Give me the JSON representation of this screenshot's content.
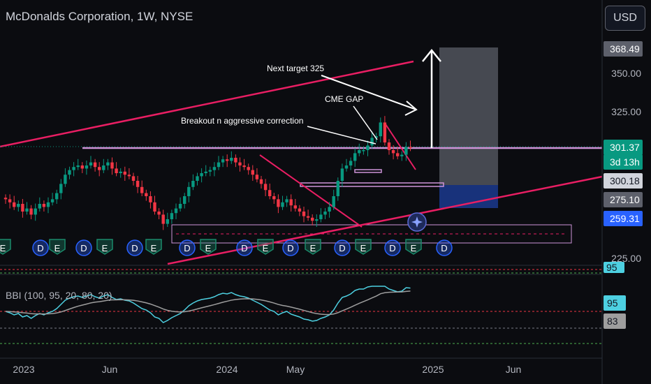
{
  "header": {
    "symbol_title": "McDonalds Corporation, 1W, NYSE",
    "currency_button": "USD"
  },
  "colors": {
    "up": "#089981",
    "down": "#f23645",
    "trendline": "#e91e63",
    "level": "#ce93d8",
    "earnings_green": "#1b8a6b",
    "earnings_red": "#b33a4a",
    "earnings_blue": "#2962ff"
  },
  "annotations": {
    "next_target": "Next target 325",
    "cme_gap": "CME GAP",
    "breakout": "Breakout n aggressive correction"
  },
  "price_axis": {
    "ticks": [
      "350.00",
      "325.00",
      "225.00"
    ],
    "badges": [
      {
        "text": "368.49",
        "bg": "#5d606b",
        "fg": "#ffffff"
      },
      {
        "text": "301.37",
        "bg": "#089981",
        "fg": "#ffffff"
      },
      {
        "text": "3d 13h",
        "bg": "#089981",
        "fg": "#ffffff"
      },
      {
        "text": "300.18",
        "bg": "#d1d4dc",
        "fg": "#131722"
      },
      {
        "text": "275.10",
        "bg": "#5d606b",
        "fg": "#ffffff"
      },
      {
        "text": "259.31",
        "bg": "#2962ff",
        "fg": "#ffffff"
      }
    ]
  },
  "earnings_markers": [
    "E",
    "D",
    "E",
    "D",
    "E",
    "D",
    "E",
    "D",
    "E",
    "D",
    "E",
    "D",
    "E",
    "D",
    "E",
    "D",
    "E",
    "D",
    "E",
    "D",
    "E"
  ],
  "indicator": {
    "label": "BBI (100, 95, 20, 80, 20)",
    "badges": [
      "95",
      "83"
    ],
    "upper_badge": "95"
  },
  "time_axis": {
    "labels": [
      "2023",
      "Jun",
      "2024",
      "May",
      "2025",
      "Jun"
    ]
  },
  "chart_data": {
    "type": "candlestick",
    "title": "McDonalds Corporation, 1W, NYSE",
    "xlabel": "",
    "ylabel": "",
    "ylim": [
      225,
      368.49
    ],
    "close": [
      268,
      266,
      263,
      265,
      260,
      262,
      258,
      262,
      265,
      263,
      266,
      268,
      272,
      278,
      284,
      287,
      289,
      290,
      288,
      290,
      292,
      289,
      287,
      290,
      292,
      288,
      285,
      286,
      284,
      283,
      280,
      276,
      272,
      270,
      266,
      260,
      258,
      252,
      255,
      259,
      262,
      265,
      270,
      276,
      280,
      283,
      285,
      286,
      287,
      289,
      292,
      294,
      293,
      295,
      292,
      290,
      289,
      287,
      284,
      281,
      278,
      274,
      270,
      268,
      263,
      266,
      268,
      264,
      262,
      260,
      257,
      256,
      254,
      255,
      258,
      260,
      263,
      270,
      280,
      288,
      290,
      293,
      298,
      300,
      300,
      303,
      308,
      309,
      318,
      305,
      300,
      298,
      296,
      297,
      302,
      301.37
    ],
    "indicator_series": [
      {
        "name": "BBI (100, 95, 20, 80, 20)",
        "last": 95,
        "signal_last": 83
      }
    ],
    "levels": [
      300.18,
      275.1,
      259.31,
      368.49
    ],
    "grid": false
  }
}
